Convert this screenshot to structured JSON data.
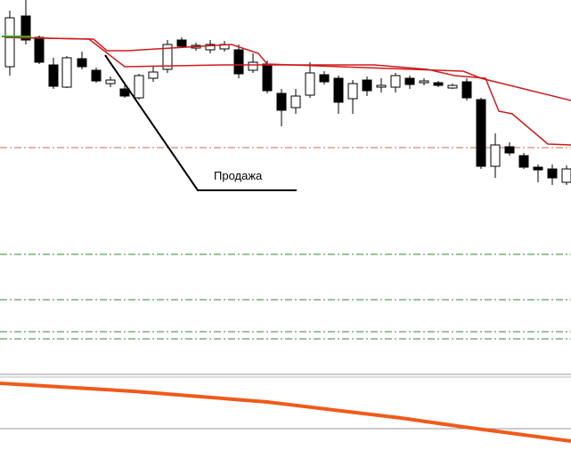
{
  "annotation": "Продажа"
}
